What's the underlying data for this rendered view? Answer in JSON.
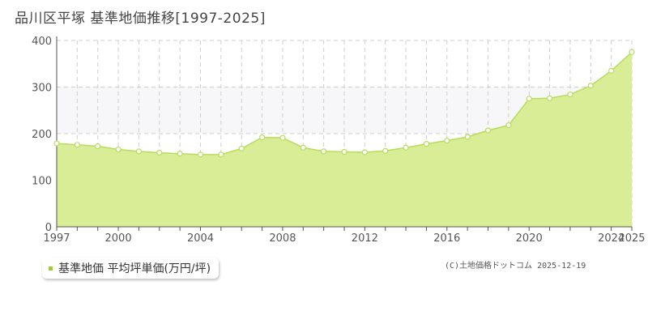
{
  "page": {
    "title": "品川区平塚 基準地価推移[1997-2025]",
    "credit": "(C)土地価格ドットコム 2025-12-19"
  },
  "legend": {
    "label": "基準地価 平均坪単価(万円/坪)",
    "color": "#9acd32"
  },
  "colors": {
    "fill": "#d9ec96",
    "line": "#b7dd5c",
    "marker_fill": "#ffffff",
    "grid": "#cfcfcf",
    "band": "#f7f7f9"
  },
  "chart_data": {
    "type": "area",
    "title": "品川区平塚 基準地価推移[1997-2025]",
    "xlabel": "",
    "ylabel": "",
    "xlim": [
      1997,
      2025
    ],
    "ylim": [
      0,
      400
    ],
    "y_ticks": [
      0,
      100,
      200,
      300,
      400
    ],
    "x_ticks": [
      1997,
      2000,
      2004,
      2008,
      2012,
      2016,
      2020,
      2024,
      2025
    ],
    "grid": true,
    "legend_position": "bottom-left",
    "series": [
      {
        "name": "基準地価 平均坪単価(万円/坪)",
        "x": [
          1997,
          1998,
          1999,
          2000,
          2001,
          2002,
          2003,
          2004,
          2005,
          2006,
          2007,
          2008,
          2009,
          2010,
          2011,
          2012,
          2013,
          2014,
          2015,
          2016,
          2017,
          2018,
          2019,
          2020,
          2021,
          2022,
          2023,
          2024,
          2025
        ],
        "values": [
          179,
          176,
          173,
          166,
          162,
          159,
          157,
          155,
          155,
          168,
          192,
          191,
          170,
          162,
          161,
          160,
          163,
          170,
          178,
          185,
          193,
          207,
          218,
          275,
          276,
          284,
          303,
          335,
          375
        ]
      }
    ]
  }
}
